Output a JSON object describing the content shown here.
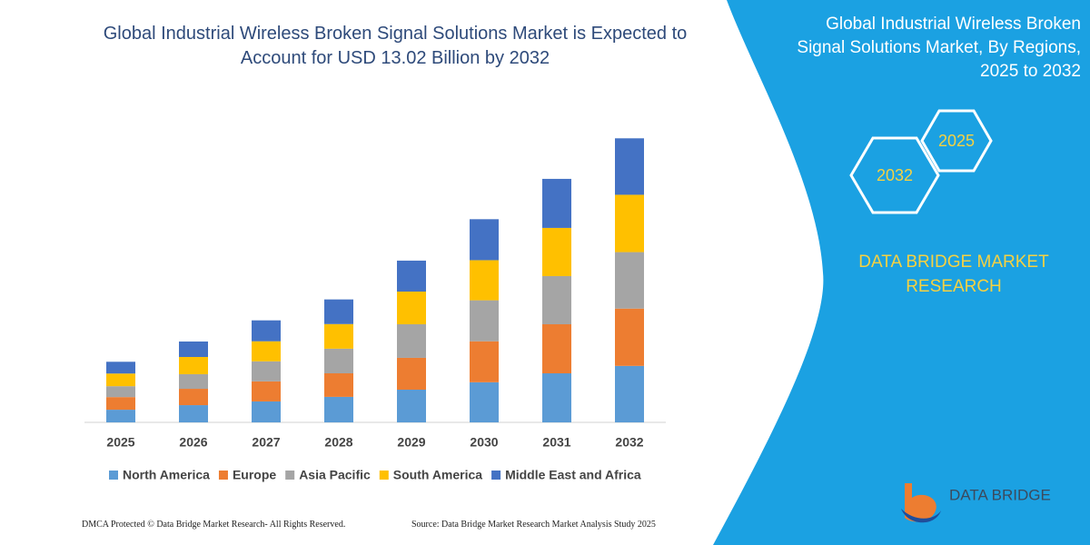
{
  "chart_data": {
    "type": "bar",
    "stacked": true,
    "title": "Global Industrial Wireless Broken Signal Solutions Market is Expected to Account for USD 13.02 Billion by 2032",
    "categories": [
      "2025",
      "2026",
      "2027",
      "2028",
      "2029",
      "2030",
      "2031",
      "2032"
    ],
    "series": [
      {
        "name": "North America",
        "color": "#5b9bd5",
        "values": [
          0.58,
          0.79,
          0.96,
          1.17,
          1.5,
          1.84,
          2.25,
          2.59
        ]
      },
      {
        "name": "Europe",
        "color": "#ed7d31",
        "values": [
          0.58,
          0.75,
          0.92,
          1.08,
          1.46,
          1.88,
          2.25,
          2.63
        ]
      },
      {
        "name": "Asia Pacific",
        "color": "#a5a5a5",
        "values": [
          0.5,
          0.67,
          0.92,
          1.13,
          1.54,
          1.88,
          2.21,
          2.59
        ]
      },
      {
        "name": "South America",
        "color": "#ffc000",
        "values": [
          0.58,
          0.79,
          0.92,
          1.13,
          1.5,
          1.84,
          2.21,
          2.63
        ]
      },
      {
        "name": "Middle East and Africa",
        "color": "#4472c4",
        "values": [
          0.54,
          0.71,
          0.96,
          1.13,
          1.42,
          1.88,
          2.25,
          2.59
        ]
      }
    ],
    "ylim": [
      0,
      14
    ],
    "legend": "bottom"
  },
  "panel": {
    "title": "Global Industrial Wireless Broken Signal Solutions Market, By Regions, 2025 to 2032",
    "hexagons": [
      "2032",
      "2025"
    ],
    "brand": "DATA BRIDGE MARKET RESEARCH",
    "logo": "DATA BRIDGE"
  },
  "footer": {
    "left": "DMCA Protected © Data Bridge Market Research- All Rights Reserved.",
    "right": "Source: Data Bridge Market Research Market Analysis Study 2025"
  }
}
